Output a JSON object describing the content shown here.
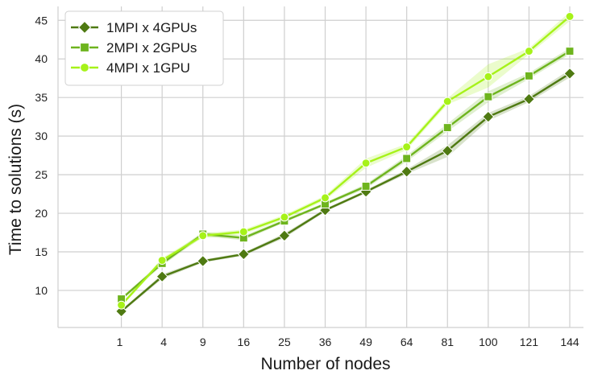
{
  "chart_data": {
    "type": "line",
    "xlabel": "Number of nodes",
    "ylabel": "Time to solutions (s)",
    "x": [
      1,
      4,
      9,
      16,
      25,
      36,
      49,
      64,
      81,
      100,
      121,
      144
    ],
    "x_tick_labels": [
      "1",
      "4",
      "9",
      "16",
      "25",
      "36",
      "49",
      "64",
      "81",
      "100",
      "121",
      "144"
    ],
    "x_scale": "sqrt",
    "xlim": [
      0,
      144
    ],
    "ylim": [
      5.2,
      46.8
    ],
    "y_ticks": [
      10,
      15,
      20,
      25,
      30,
      35,
      40,
      45
    ],
    "grid": true,
    "legend_position": "top-left",
    "series": [
      {
        "name": "1MPI x 4GPUs",
        "color": "#4f7a12",
        "marker": "diamond",
        "values": [
          7.3,
          11.8,
          13.8,
          14.7,
          17.1,
          20.4,
          22.8,
          25.4,
          28.1,
          32.5,
          34.8,
          38.1
        ],
        "band": [
          [
            7.1,
            7.5
          ],
          [
            11.5,
            12.1
          ],
          [
            13.6,
            14.0
          ],
          [
            14.5,
            14.9
          ],
          [
            16.8,
            17.4
          ],
          [
            20.2,
            20.6
          ],
          [
            22.6,
            23.0
          ],
          [
            25.1,
            25.7
          ],
          [
            27.3,
            28.8
          ],
          [
            32.0,
            33.0
          ],
          [
            34.4,
            35.2
          ],
          [
            37.6,
            38.6
          ]
        ]
      },
      {
        "name": "2MPI x 2GPUs",
        "color": "#6eb41e",
        "marker": "square",
        "values": [
          8.9,
          13.5,
          17.3,
          16.8,
          19.0,
          21.2,
          23.5,
          27.1,
          31.1,
          35.1,
          37.8,
          41.0
        ],
        "band": [
          [
            8.7,
            9.1
          ],
          [
            13.2,
            13.8
          ],
          [
            17.0,
            17.6
          ],
          [
            16.5,
            17.1
          ],
          [
            18.8,
            19.2
          ],
          [
            21.0,
            21.4
          ],
          [
            23.2,
            23.8
          ],
          [
            26.7,
            27.5
          ],
          [
            30.6,
            31.6
          ],
          [
            34.4,
            35.8
          ],
          [
            37.4,
            38.2
          ],
          [
            40.6,
            41.4
          ]
        ]
      },
      {
        "name": "4MPI x 1GPU",
        "color": "#a6f219",
        "marker": "circle",
        "values": [
          8.1,
          13.9,
          17.1,
          17.6,
          19.5,
          22.0,
          26.5,
          28.6,
          34.5,
          37.7,
          41.0,
          45.5
        ],
        "band": [
          [
            7.9,
            8.3
          ],
          [
            13.6,
            14.2
          ],
          [
            16.8,
            17.4
          ],
          [
            17.3,
            17.9
          ],
          [
            19.2,
            19.8
          ],
          [
            21.7,
            22.3
          ],
          [
            25.9,
            27.1
          ],
          [
            28.2,
            29.0
          ],
          [
            34.1,
            34.9
          ],
          [
            36.3,
            39.3
          ],
          [
            40.6,
            41.4
          ],
          [
            44.9,
            46.1
          ]
        ]
      }
    ]
  }
}
